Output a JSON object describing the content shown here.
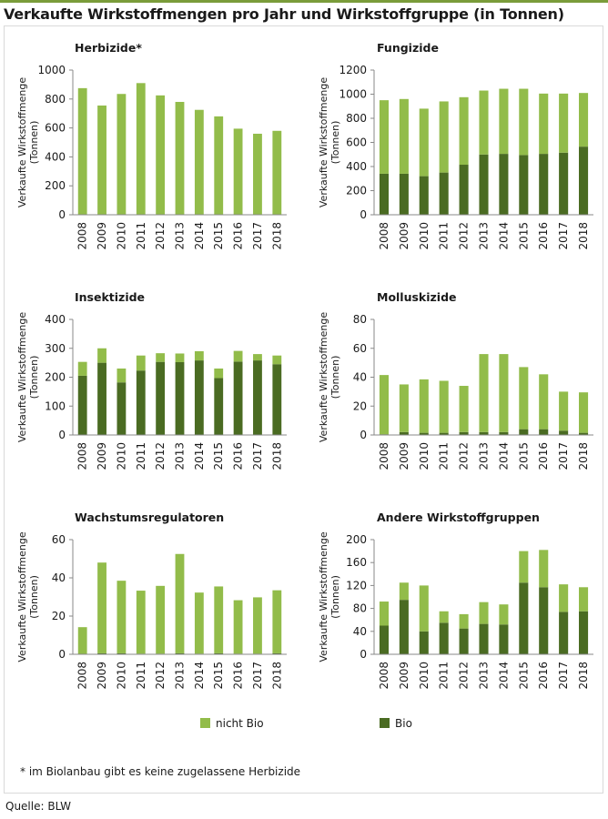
{
  "page": {
    "title": "Verkaufte Wirkstoffmengen pro Jahr und Wirkstoffgruppe (in Tonnen)",
    "footnote": "* im Biolanbau gibt es keine zugelassene Herbizide",
    "source": "Quelle: BLW"
  },
  "colors": {
    "nicht_bio": "#92bc4a",
    "bio": "#4a6b22",
    "axis": "#888888",
    "grid": "#cccccc"
  },
  "legend": {
    "nicht_bio": "nicht Bio",
    "bio": "Bio"
  },
  "chart_data": [
    {
      "type": "bar",
      "stacked": true,
      "title": "Herbizide*",
      "ylabel": "Verkaufte Wirkstoffmenge (Tonnen)",
      "categories": [
        "2008",
        "2009",
        "2010",
        "2011",
        "2012",
        "2013",
        "2014",
        "2015",
        "2016",
        "2017",
        "2018"
      ],
      "ylim": [
        0,
        1000
      ],
      "yticks": [
        0,
        200,
        400,
        600,
        800,
        1000
      ],
      "series": [
        {
          "name": "nicht Bio",
          "values": [
            875,
            755,
            835,
            910,
            825,
            780,
            725,
            680,
            595,
            560,
            580
          ]
        },
        {
          "name": "Bio",
          "values": [
            0,
            0,
            0,
            0,
            0,
            0,
            0,
            0,
            0,
            0,
            0
          ]
        }
      ]
    },
    {
      "type": "bar",
      "stacked": true,
      "title": "Fungizide",
      "ylabel": "Verkaufte Wirkstoffmenge (Tonnen)",
      "categories": [
        "2008",
        "2009",
        "2010",
        "2011",
        "2012",
        "2013",
        "2014",
        "2015",
        "2016",
        "2017",
        "2018"
      ],
      "ylim": [
        0,
        1200
      ],
      "yticks": [
        0,
        200,
        400,
        600,
        800,
        1000,
        1200
      ],
      "series": [
        {
          "name": "nicht Bio",
          "values": [
            610,
            620,
            560,
            590,
            560,
            530,
            540,
            550,
            500,
            490,
            445
          ]
        },
        {
          "name": "Bio",
          "values": [
            340,
            340,
            320,
            350,
            415,
            500,
            505,
            495,
            505,
            515,
            565
          ]
        }
      ]
    },
    {
      "type": "bar",
      "stacked": true,
      "title": "Insektizide",
      "ylabel": "Verkaufte Wirkstoffmenge (Tonnen)",
      "categories": [
        "2008",
        "2009",
        "2010",
        "2011",
        "2012",
        "2013",
        "2014",
        "2015",
        "2016",
        "2017",
        "2018"
      ],
      "ylim": [
        0,
        400
      ],
      "yticks": [
        0,
        100,
        200,
        300,
        400
      ],
      "series": [
        {
          "name": "nicht Bio",
          "values": [
            48,
            50,
            48,
            52,
            30,
            30,
            32,
            33,
            37,
            22,
            30
          ]
        },
        {
          "name": "Bio",
          "values": [
            205,
            250,
            182,
            223,
            253,
            252,
            258,
            197,
            254,
            258,
            245
          ]
        }
      ]
    },
    {
      "type": "bar",
      "stacked": true,
      "title": "Molluskizide",
      "ylabel": "Verkaufte Wirkstoffmenge (Tonnen)",
      "categories": [
        "2008",
        "2009",
        "2010",
        "2011",
        "2012",
        "2013",
        "2014",
        "2015",
        "2016",
        "2017",
        "2018"
      ],
      "ylim": [
        0,
        80
      ],
      "yticks": [
        0,
        20,
        40,
        60,
        80
      ],
      "series": [
        {
          "name": "nicht Bio",
          "values": [
            41,
            33,
            37,
            36,
            32,
            54,
            54,
            43,
            38,
            27,
            28
          ]
        },
        {
          "name": "Bio",
          "values": [
            0.5,
            2,
            1.5,
            1.5,
            2,
            2,
            2,
            4,
            4,
            3,
            1.5
          ]
        }
      ]
    },
    {
      "type": "bar",
      "stacked": true,
      "title": "Wachstumsregulatoren",
      "ylabel": "Verkaufte Wirkstoffmenge (Tonnen)",
      "categories": [
        "2008",
        "2009",
        "2010",
        "2011",
        "2012",
        "2013",
        "2014",
        "2015",
        "2016",
        "2017",
        "2018"
      ],
      "ylim": [
        0,
        60
      ],
      "yticks": [
        0,
        20,
        40,
        60
      ],
      "series": [
        {
          "name": "nicht Bio",
          "values": [
            14,
            47.5,
            38,
            33,
            35.5,
            52,
            32,
            35,
            28,
            29.5,
            33
          ]
        },
        {
          "name": "Bio",
          "values": [
            0.2,
            0.5,
            0.5,
            0.3,
            0.3,
            0.5,
            0.3,
            0.5,
            0.3,
            0.3,
            0.5
          ]
        }
      ]
    },
    {
      "type": "bar",
      "stacked": true,
      "title": "Andere Wirkstoffgruppen",
      "ylabel": "Verkaufte Wirkstoffmenge (Tonnen)",
      "categories": [
        "2008",
        "2009",
        "2010",
        "2011",
        "2012",
        "2013",
        "2014",
        "2015",
        "2016",
        "2017",
        "2018"
      ],
      "ylim": [
        0,
        200
      ],
      "yticks": [
        0,
        40,
        80,
        120,
        160,
        200
      ],
      "series": [
        {
          "name": "nicht Bio",
          "values": [
            42,
            30,
            80,
            20,
            25,
            38,
            35,
            55,
            65,
            48,
            42
          ]
        },
        {
          "name": "Bio",
          "values": [
            50,
            95,
            40,
            55,
            45,
            53,
            52,
            125,
            117,
            74,
            75
          ]
        }
      ]
    }
  ]
}
